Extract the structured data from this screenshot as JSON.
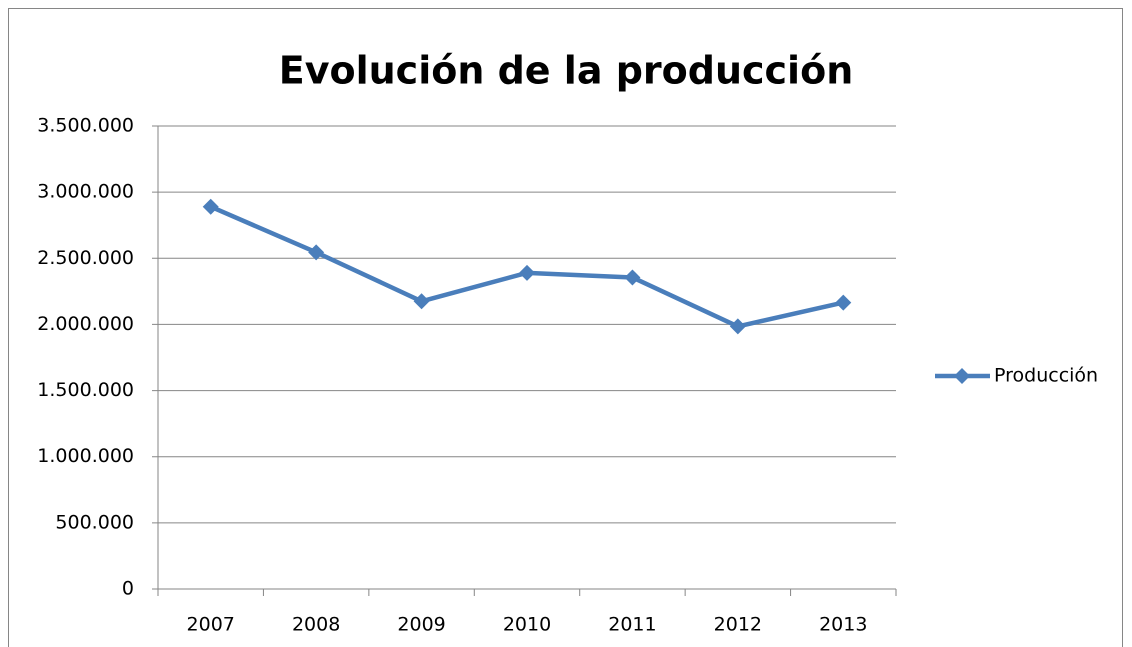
{
  "chart_data": {
    "type": "line",
    "title": "Evolución de la producción",
    "categories": [
      "2007",
      "2008",
      "2009",
      "2010",
      "2011",
      "2012",
      "2013"
    ],
    "series": [
      {
        "name": "Producción",
        "color": "#4a7ebb",
        "values": [
          2890000,
          2545000,
          2175000,
          2390000,
          2355000,
          1985000,
          2165000
        ]
      }
    ],
    "ylim": [
      0,
      3500000
    ],
    "yticks": [
      0,
      {
        "value": 500000,
        "label": "500.000"
      },
      {
        "value": 1000000,
        "label": "1.000.000"
      },
      {
        "value": 1500000,
        "label": "1.500.000"
      },
      {
        "value": 2000000,
        "label": "2.000.000"
      },
      {
        "value": 2500000,
        "label": "2.500.000"
      },
      {
        "value": 3000000,
        "label": "3.000.000"
      },
      {
        "value": 3500000,
        "label": "3.500.000"
      }
    ],
    "grid": true,
    "legend": "right"
  }
}
